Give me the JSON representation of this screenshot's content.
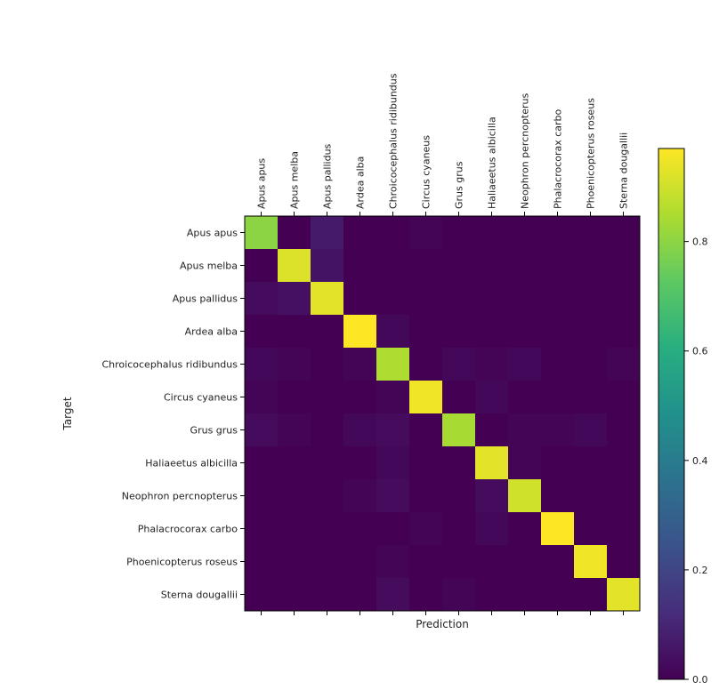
{
  "chart_data": {
    "type": "heatmap",
    "title": "",
    "xlabel": "Prediction",
    "ylabel": "Target",
    "x_tick_position": "top",
    "categories": [
      "Apus apus",
      "Apus melba",
      "Apus pallidus",
      "Ardea alba",
      "Chroicocephalus ridibundus",
      "Circus cyaneus",
      "Grus grus",
      "Haliaeetus albicilla",
      "Neophron percnopterus",
      "Phalacrocorax carbo",
      "Phoenicopterus roseus",
      "Sterna dougallii"
    ],
    "values": [
      [
        0.8,
        0.0,
        0.07,
        0.0,
        0.0,
        0.01,
        0.0,
        0.0,
        0.0,
        0.0,
        0.0,
        0.0
      ],
      [
        0.0,
        0.92,
        0.05,
        0.0,
        0.0,
        0.0,
        0.0,
        0.0,
        0.0,
        0.0,
        0.0,
        0.0
      ],
      [
        0.03,
        0.04,
        0.93,
        0.0,
        0.0,
        0.0,
        0.0,
        0.0,
        0.0,
        0.0,
        0.0,
        0.0
      ],
      [
        0.0,
        0.0,
        0.0,
        0.97,
        0.02,
        0.0,
        0.0,
        0.0,
        0.0,
        0.0,
        0.0,
        0.0
      ],
      [
        0.02,
        0.01,
        0.0,
        0.01,
        0.85,
        0.0,
        0.02,
        0.01,
        0.02,
        0.0,
        0.0,
        0.01
      ],
      [
        0.01,
        0.0,
        0.0,
        0.0,
        0.01,
        0.95,
        0.0,
        0.02,
        0.0,
        0.0,
        0.0,
        0.0
      ],
      [
        0.03,
        0.01,
        0.0,
        0.02,
        0.03,
        0.0,
        0.84,
        0.0,
        0.01,
        0.01,
        0.02,
        0.0
      ],
      [
        0.0,
        0.0,
        0.0,
        0.0,
        0.02,
        0.0,
        0.0,
        0.93,
        0.01,
        0.0,
        0.0,
        0.0
      ],
      [
        0.0,
        0.0,
        0.0,
        0.01,
        0.03,
        0.0,
        0.0,
        0.03,
        0.9,
        0.0,
        0.0,
        0.0
      ],
      [
        0.0,
        0.0,
        0.0,
        0.0,
        0.0,
        0.01,
        0.0,
        0.02,
        0.0,
        0.97,
        0.0,
        0.0
      ],
      [
        0.0,
        0.0,
        0.0,
        0.0,
        0.01,
        0.0,
        0.0,
        0.0,
        0.0,
        0.0,
        0.95,
        0.0
      ],
      [
        0.0,
        0.0,
        0.0,
        0.0,
        0.03,
        0.0,
        0.01,
        0.0,
        0.0,
        0.0,
        0.0,
        0.93
      ]
    ],
    "colorbar": {
      "colormap": "viridis",
      "range": [
        0.0,
        0.97
      ],
      "ticks": [
        0.0,
        0.2,
        0.4,
        0.6,
        0.8
      ],
      "tick_labels": [
        "0.0",
        "0.2",
        "0.4",
        "0.6",
        "0.8"
      ]
    }
  }
}
